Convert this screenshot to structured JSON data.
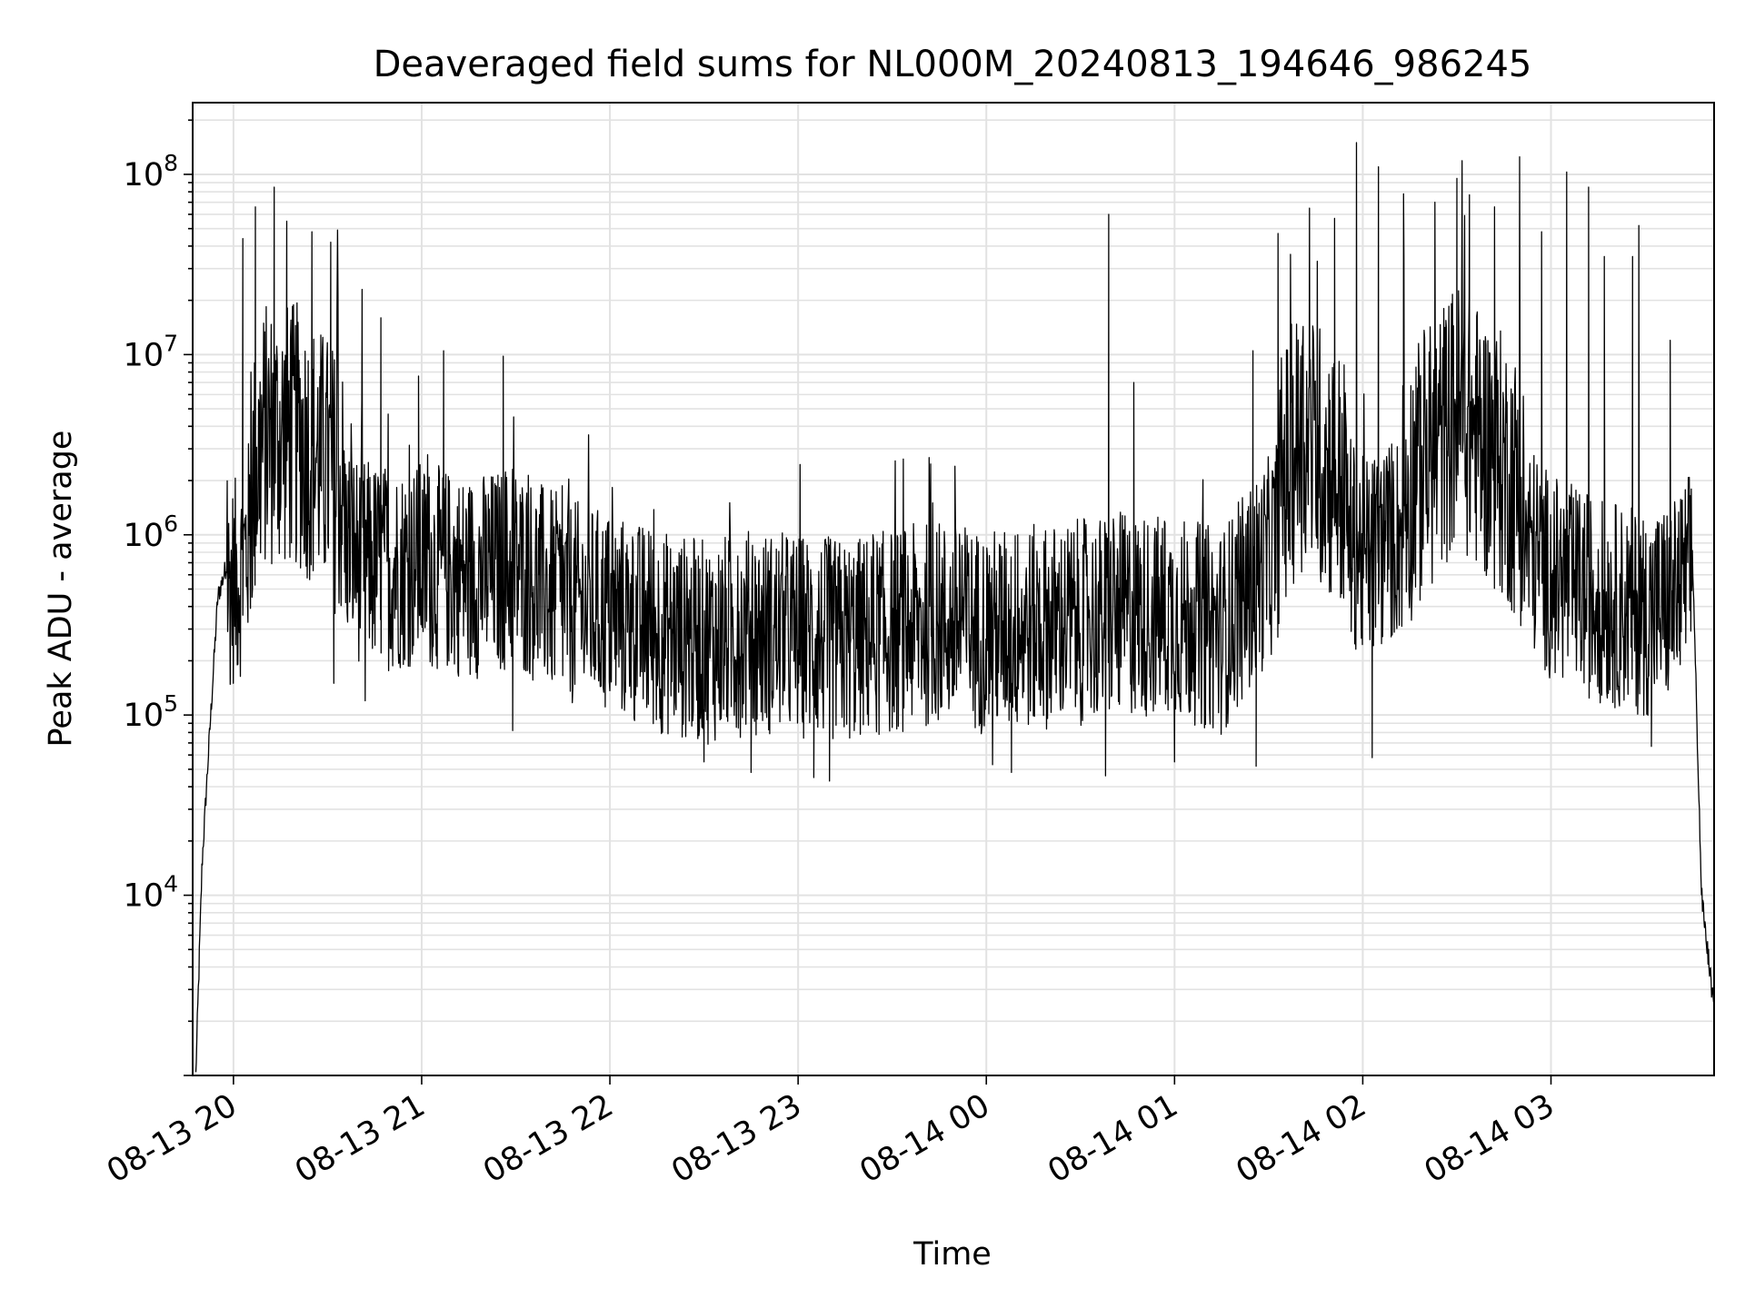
{
  "chart_data": {
    "type": "line",
    "title": "Deaveraged field sums for NL000M_20240813_194646_986245",
    "xlabel": "Time",
    "ylabel": "Peak ADU - average",
    "yscale": "log",
    "grid": true,
    "legend": "none",
    "xlim": [
      "2024-08-13 19:47",
      "2024-08-14 03:52"
    ],
    "ylim": [
      1000,
      250000000
    ],
    "x_ticks": [
      "08-13 20",
      "08-13 21",
      "08-13 22",
      "08-13 23",
      "08-14 00",
      "08-14 01",
      "08-14 02",
      "08-14 03"
    ],
    "x_tick_times": [
      "2024-08-13 20:00",
      "2024-08-13 21:00",
      "2024-08-13 22:00",
      "2024-08-13 23:00",
      "2024-08-14 00:00",
      "2024-08-14 01:00",
      "2024-08-14 02:00",
      "2024-08-14 03:00"
    ],
    "y_ticks": [
      {
        "base": "10",
        "exp": "4",
        "value": 10000
      },
      {
        "base": "10",
        "exp": "5",
        "value": 100000
      },
      {
        "base": "10",
        "exp": "6",
        "value": 1000000
      },
      {
        "base": "10",
        "exp": "7",
        "value": 10000000
      },
      {
        "base": "10",
        "exp": "8",
        "value": 100000000
      }
    ],
    "series": [
      {
        "color": "#000000",
        "x": [
          "2024-08-13 19:48",
          "2024-08-13 19:50",
          "2024-08-13 19:52",
          "2024-08-13 19:55",
          "2024-08-13 19:58",
          "2024-08-13 20:02",
          "2024-08-13 20:10",
          "2024-08-13 20:20",
          "2024-08-13 20:30",
          "2024-08-13 20:40",
          "2024-08-13 20:50",
          "2024-08-13 21:00",
          "2024-08-13 21:15",
          "2024-08-13 21:30",
          "2024-08-13 21:45",
          "2024-08-13 22:00",
          "2024-08-13 22:15",
          "2024-08-13 22:30",
          "2024-08-13 22:45",
          "2024-08-13 23:00",
          "2024-08-13 23:15",
          "2024-08-13 23:30",
          "2024-08-13 23:45",
          "2024-08-14 00:00",
          "2024-08-14 00:15",
          "2024-08-14 00:30",
          "2024-08-14 00:45",
          "2024-08-14 01:00",
          "2024-08-14 01:15",
          "2024-08-14 01:30",
          "2024-08-14 01:40",
          "2024-08-14 01:50",
          "2024-08-14 02:00",
          "2024-08-14 02:15",
          "2024-08-14 02:30",
          "2024-08-14 02:45",
          "2024-08-14 03:00",
          "2024-08-14 03:15",
          "2024-08-14 03:30",
          "2024-08-14 03:40",
          "2024-08-14 03:45",
          "2024-08-14 03:48",
          "2024-08-14 03:52"
        ],
        "y": [
          1000,
          15000,
          60000,
          450000,
          700000,
          800000,
          3000000,
          3000000,
          2000000,
          1000000,
          900000,
          950000,
          800000,
          900000,
          600000,
          500000,
          400000,
          350000,
          400000,
          380000,
          350000,
          400000,
          450000,
          400000,
          420000,
          450000,
          500000,
          480000,
          400000,
          1000000,
          3000000,
          2000000,
          1000000,
          1500000,
          4000000,
          2000000,
          800000,
          600000,
          500000,
          600000,
          900000,
          10000,
          2300
        ],
        "spikes": [
          {
            "x": "2024-08-13 20:03",
            "y": 44000000
          },
          {
            "x": "2024-08-13 20:07",
            "y": 66000000
          },
          {
            "x": "2024-08-13 20:13",
            "y": 85000000
          },
          {
            "x": "2024-08-13 20:17",
            "y": 55000000
          },
          {
            "x": "2024-08-13 20:25",
            "y": 48000000
          },
          {
            "x": "2024-08-13 20:31",
            "y": 42000000
          },
          {
            "x": "2024-08-13 20:41",
            "y": 23000000
          },
          {
            "x": "2024-08-13 20:47",
            "y": 16000000
          },
          {
            "x": "2024-08-13 20:59",
            "y": 7600000
          },
          {
            "x": "2024-08-13 21:07",
            "y": 10500000
          },
          {
            "x": "2024-08-13 21:26",
            "y": 9800000
          },
          {
            "x": "2024-08-13 23:50",
            "y": 2400000
          },
          {
            "x": "2024-08-14 00:39",
            "y": 60000000
          },
          {
            "x": "2024-08-14 00:47",
            "y": 7000000
          },
          {
            "x": "2024-08-14 01:25",
            "y": 10500000
          },
          {
            "x": "2024-08-14 01:33",
            "y": 47000000
          },
          {
            "x": "2024-08-14 01:43",
            "y": 65000000
          },
          {
            "x": "2024-08-14 01:51",
            "y": 57000000
          },
          {
            "x": "2024-08-14 01:58",
            "y": 150000000
          },
          {
            "x": "2024-08-14 02:05",
            "y": 110000000
          },
          {
            "x": "2024-08-14 02:13",
            "y": 78000000
          },
          {
            "x": "2024-08-14 02:23",
            "y": 70000000
          },
          {
            "x": "2024-08-14 02:30",
            "y": 95000000
          },
          {
            "x": "2024-08-14 02:34",
            "y": 77000000
          },
          {
            "x": "2024-08-14 02:42",
            "y": 66000000
          },
          {
            "x": "2024-08-14 02:50",
            "y": 125000000
          },
          {
            "x": "2024-08-14 02:57",
            "y": 48000000
          },
          {
            "x": "2024-08-14 03:05",
            "y": 103000000
          },
          {
            "x": "2024-08-14 03:12",
            "y": 85000000
          },
          {
            "x": "2024-08-14 03:17",
            "y": 35000000
          },
          {
            "x": "2024-08-14 03:26",
            "y": 35000000
          },
          {
            "x": "2024-08-14 03:28",
            "y": 52000000
          },
          {
            "x": "2024-08-14 03:38",
            "y": 12000000
          }
        ],
        "dips": [
          {
            "x": "2024-08-13 19:49",
            "y": 3400
          },
          {
            "x": "2024-08-13 20:32",
            "y": 150000
          },
          {
            "x": "2024-08-13 20:42",
            "y": 120000
          },
          {
            "x": "2024-08-13 21:29",
            "y": 82000
          },
          {
            "x": "2024-08-13 22:30",
            "y": 55000
          },
          {
            "x": "2024-08-13 22:45",
            "y": 48000
          },
          {
            "x": "2024-08-13 23:05",
            "y": 45000
          },
          {
            "x": "2024-08-13 23:10",
            "y": 43000
          },
          {
            "x": "2024-08-14 00:02",
            "y": 53000
          },
          {
            "x": "2024-08-14 00:08",
            "y": 48000
          },
          {
            "x": "2024-08-14 00:38",
            "y": 46000
          },
          {
            "x": "2024-08-14 01:00",
            "y": 55000
          },
          {
            "x": "2024-08-14 01:26",
            "y": 52000
          },
          {
            "x": "2024-08-14 02:03",
            "y": 58000
          },
          {
            "x": "2024-08-14 03:32",
            "y": 67000
          }
        ]
      }
    ]
  }
}
